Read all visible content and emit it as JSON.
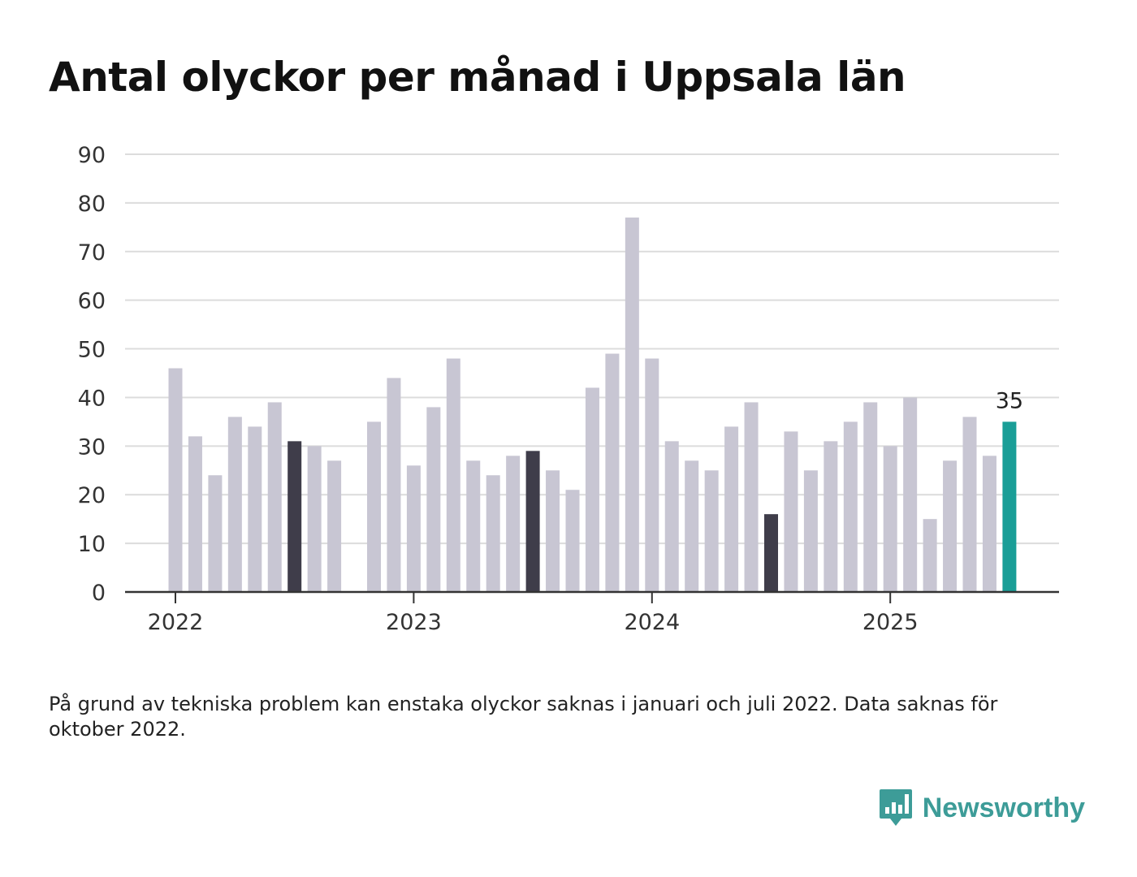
{
  "title": "Antal olyckor per månad i Uppsala län",
  "footnote": "På grund av tekniska problem kan enstaka olyckor saknas i januari och juli 2022. Data saknas för oktober 2022.",
  "brand": "Newsworthy",
  "colors": {
    "default_bar": "#c8c6d3",
    "july_bar": "#3f3d4a",
    "latest_bar": "#1a9e97",
    "gridline": "#dcdcdc",
    "axis": "#333333",
    "brand": "#3d9c98"
  },
  "chart_data": {
    "type": "bar",
    "title": "Antal olyckor per månad i Uppsala län",
    "xlabel": "",
    "ylabel": "",
    "ylim": [
      0,
      90
    ],
    "yticks": [
      0,
      10,
      20,
      30,
      40,
      50,
      60,
      70,
      80,
      90
    ],
    "xticks": [
      "2022",
      "2023",
      "2024",
      "2025"
    ],
    "grid": true,
    "categories": [
      "2022-01",
      "2022-02",
      "2022-03",
      "2022-04",
      "2022-05",
      "2022-06",
      "2022-07",
      "2022-08",
      "2022-09",
      "2022-10",
      "2022-11",
      "2022-12",
      "2023-01",
      "2023-02",
      "2023-03",
      "2023-04",
      "2023-05",
      "2023-06",
      "2023-07",
      "2023-08",
      "2023-09",
      "2023-10",
      "2023-11",
      "2023-12",
      "2024-01",
      "2024-02",
      "2024-03",
      "2024-04",
      "2024-05",
      "2024-06",
      "2024-07",
      "2024-08",
      "2024-09",
      "2024-10",
      "2024-11",
      "2024-12",
      "2025-01",
      "2025-02",
      "2025-03",
      "2025-04",
      "2025-05",
      "2025-06",
      "2025-07"
    ],
    "values": [
      46,
      32,
      24,
      36,
      34,
      39,
      31,
      30,
      27,
      null,
      35,
      44,
      26,
      38,
      48,
      27,
      24,
      28,
      29,
      25,
      21,
      42,
      49,
      77,
      48,
      31,
      27,
      25,
      34,
      39,
      16,
      33,
      25,
      31,
      35,
      39,
      30,
      40,
      15,
      27,
      36,
      28,
      35
    ],
    "highlight_july": [
      "2022-07",
      "2023-07",
      "2024-07"
    ],
    "highlight_latest": "2025-07",
    "data_labels": [
      {
        "category": "2025-07",
        "text": "35"
      }
    ]
  }
}
